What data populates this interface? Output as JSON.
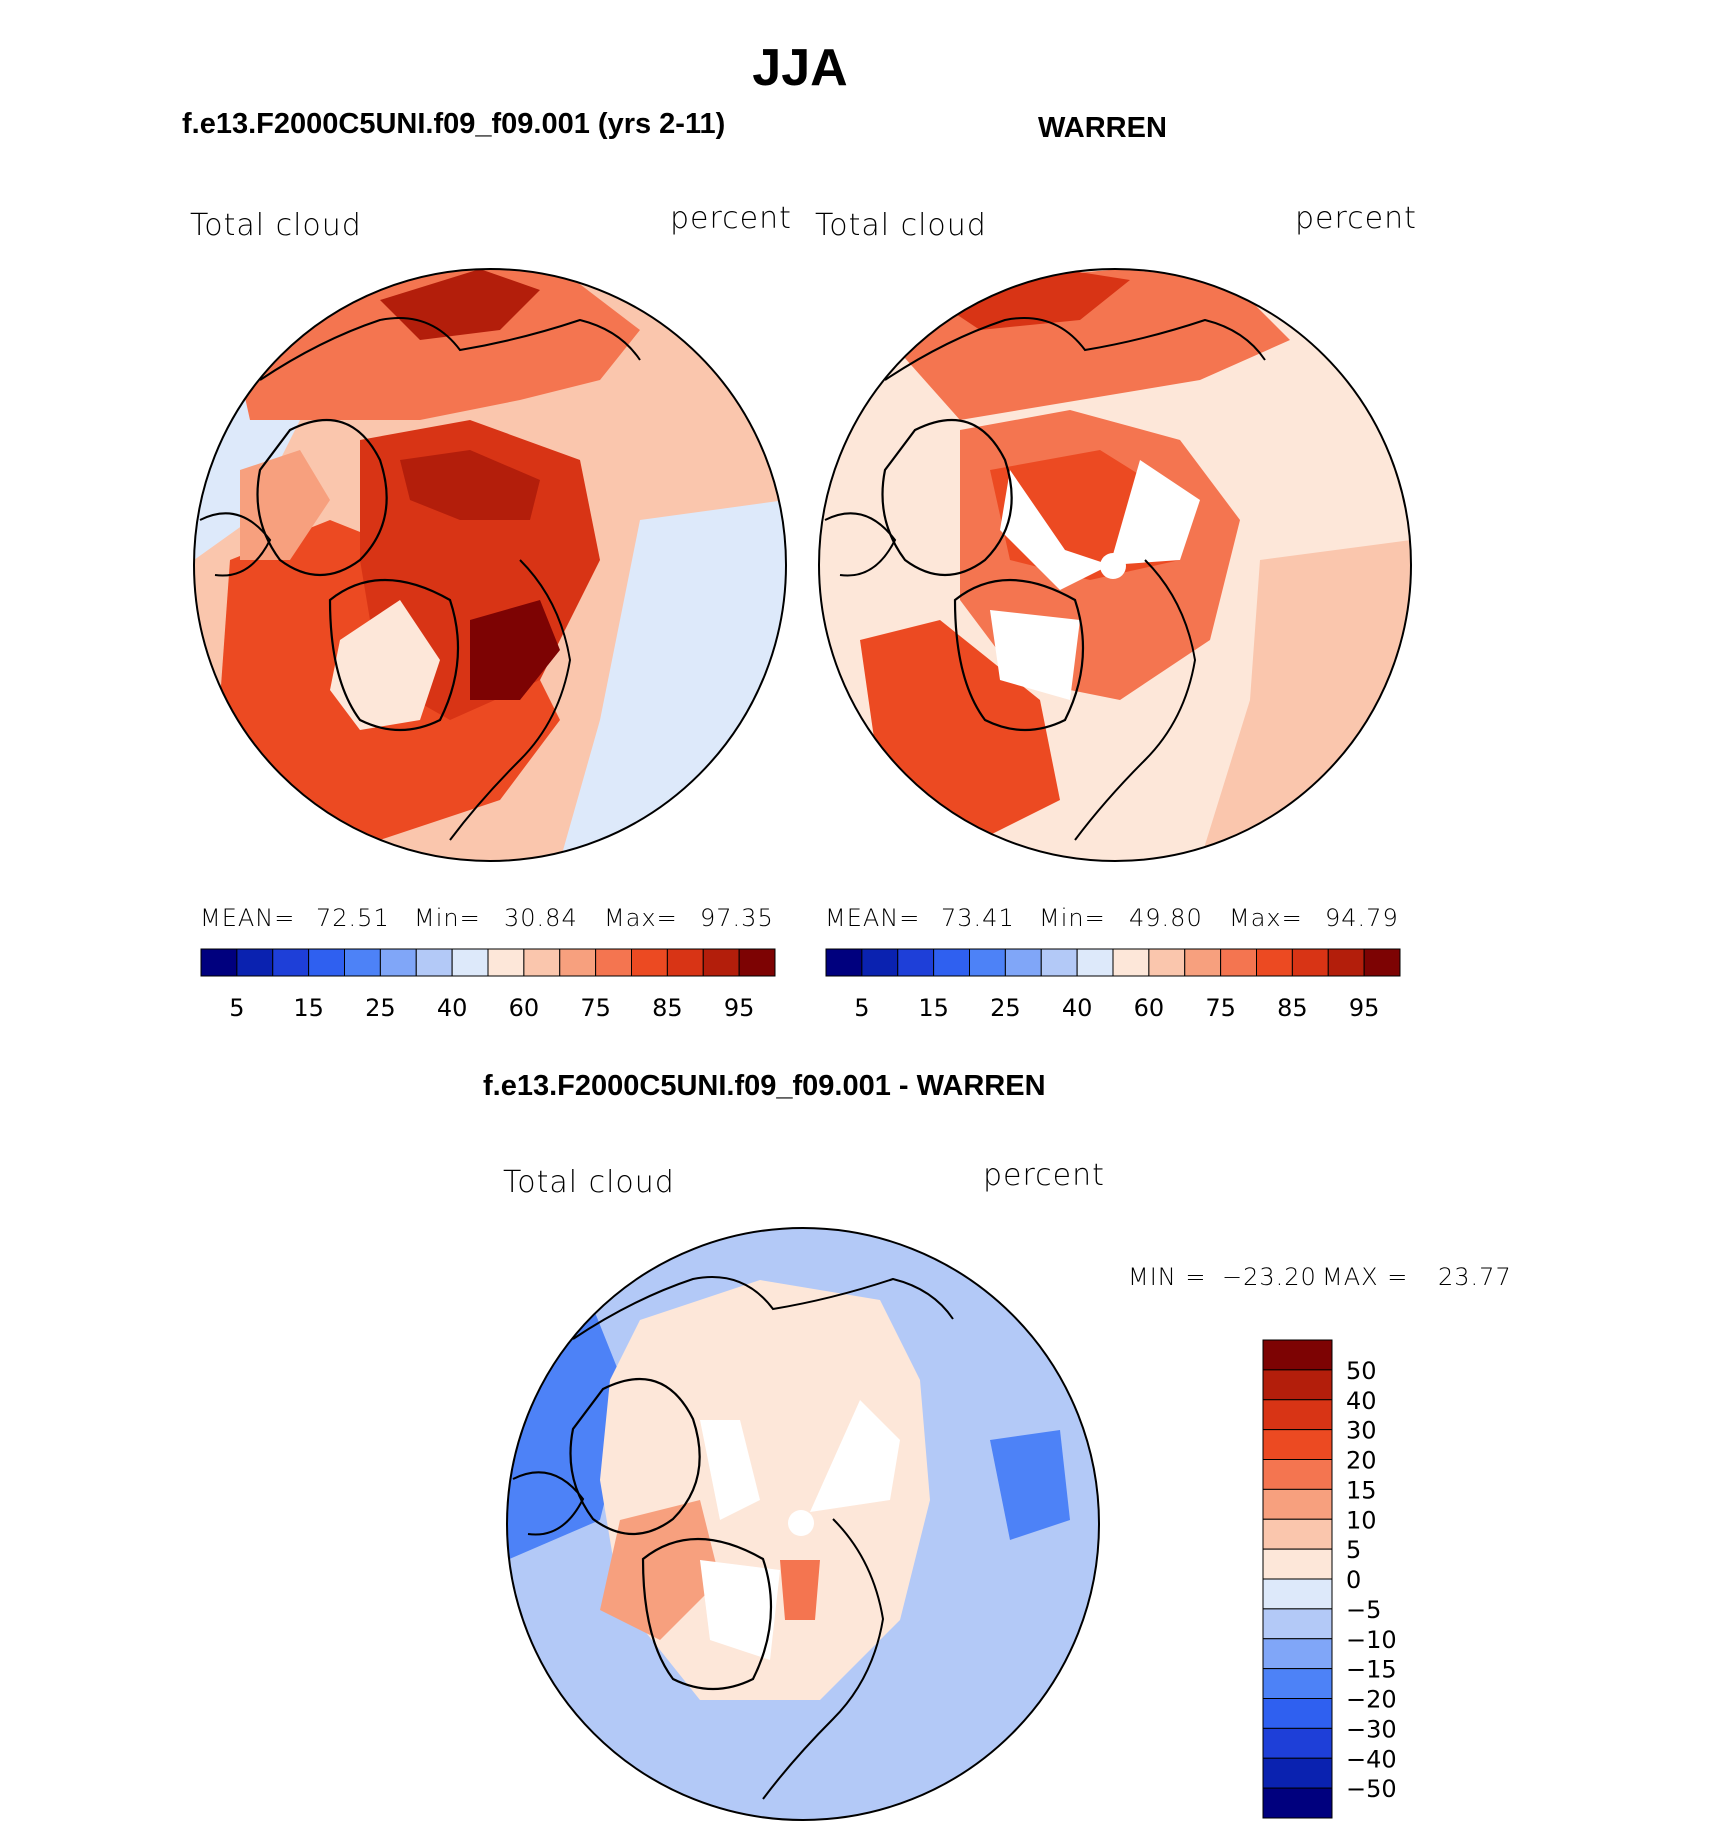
{
  "page_title": "JJA",
  "chart_data": [
    {
      "type": "heatmap",
      "projection": "north-polar-stereographic",
      "title": "f.e13.F2000C5UNI.f09_f09.001 (yrs 2-11)",
      "left_label": "Total cloud",
      "right_label": "percent",
      "stats": {
        "mean_label": "MEAN=",
        "mean": "72.51",
        "min_label": "Min=",
        "min": "30.84",
        "max_label": "Max=",
        "max": "97.35"
      },
      "colorbar": {
        "orientation": "horizontal",
        "tick_labels": [
          "5",
          "15",
          "25",
          "40",
          "60",
          "75",
          "85",
          "95"
        ],
        "colors": [
          "#00007e",
          "#0a22b0",
          "#1e3fd8",
          "#2f60f0",
          "#4d82f7",
          "#80a6f8",
          "#b3c9f7",
          "#dde9fa",
          "#fde7d9",
          "#fac6ad",
          "#f7a07e",
          "#f47550",
          "#ec4a22",
          "#d83415",
          "#b31e0b",
          "#7d0303"
        ]
      }
    },
    {
      "type": "heatmap",
      "projection": "north-polar-stereographic",
      "title": "WARREN",
      "left_label": "Total cloud",
      "right_label": "percent",
      "stats": {
        "mean_label": "MEAN=",
        "mean": "73.41",
        "min_label": "Min=",
        "min": "49.80",
        "max_label": "Max=",
        "max": "94.79"
      },
      "colorbar": {
        "orientation": "horizontal",
        "tick_labels": [
          "5",
          "15",
          "25",
          "40",
          "60",
          "75",
          "85",
          "95"
        ],
        "colors": [
          "#00007e",
          "#0a22b0",
          "#1e3fd8",
          "#2f60f0",
          "#4d82f7",
          "#80a6f8",
          "#b3c9f7",
          "#dde9fa",
          "#fde7d9",
          "#fac6ad",
          "#f7a07e",
          "#f47550",
          "#ec4a22",
          "#d83415",
          "#b31e0b",
          "#7d0303"
        ]
      }
    },
    {
      "type": "heatmap",
      "projection": "north-polar-stereographic",
      "title": "f.e13.F2000C5UNI.f09_f09.001 - WARREN",
      "left_label": "Total cloud",
      "right_label": "percent",
      "stats": {
        "min_label": "MIN =",
        "min": "−23.20",
        "max_label": "MAX =",
        "max": "23.77"
      },
      "colorbar": {
        "orientation": "vertical",
        "tick_labels": [
          "50",
          "40",
          "30",
          "20",
          "15",
          "10",
          "5",
          "0",
          "−5",
          "−10",
          "−15",
          "−20",
          "−30",
          "−40",
          "−50"
        ],
        "colors": [
          "#7d0303",
          "#b31e0b",
          "#d83415",
          "#ec4a22",
          "#f47550",
          "#f7a07e",
          "#fac6ad",
          "#fde7d9",
          "#dde9fa",
          "#b3c9f7",
          "#80a6f8",
          "#4d82f7",
          "#2f60f0",
          "#1e3fd8",
          "#0a22b0",
          "#00007e"
        ]
      }
    }
  ]
}
